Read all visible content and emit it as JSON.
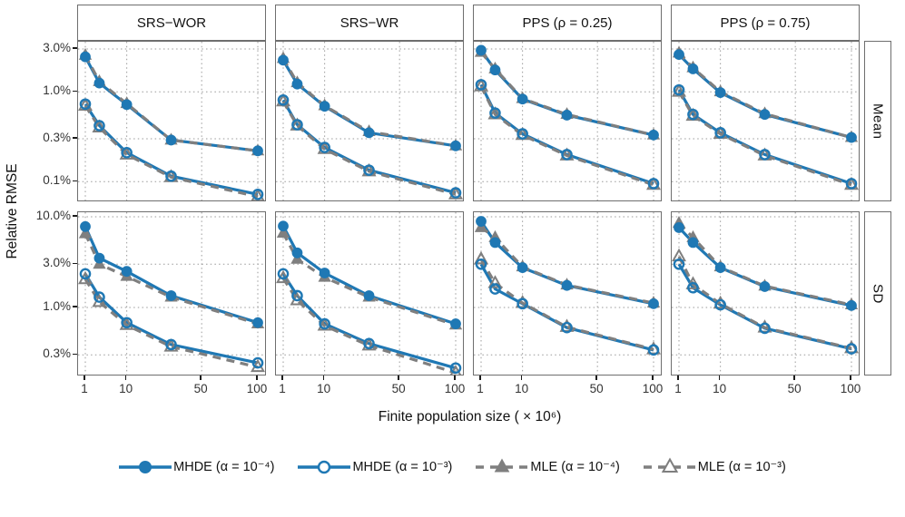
{
  "figure": {
    "xlabel": "Finite population size ( × 10⁶)",
    "ylabel": "Relative RMSE",
    "col_labels": [
      "SRS−WOR",
      "SRS−WR",
      "PPS (ρ = 0.25)",
      "PPS (ρ = 0.75)"
    ],
    "row_labels": [
      "Mean",
      "SD"
    ],
    "x_tick_labels": [
      "1",
      "10",
      "50",
      "100"
    ],
    "row_ticks": [
      {
        "labels": [
          "3.0%",
          "1.0%",
          "0.3%",
          "0.1%"
        ],
        "values": [
          3,
          1,
          0.3,
          0.1
        ]
      },
      {
        "labels": [
          "10.0%",
          "3.0%",
          "1.0%",
          "0.3%"
        ],
        "values": [
          10,
          3,
          1,
          0.3
        ]
      }
    ]
  },
  "colors": {
    "mhde_blue": "#1f78b4",
    "mle_gray": "#7f7f7f",
    "grid": "#9a9a9a",
    "panel_border": "#6e6e6e",
    "text": "#1a1a1a"
  },
  "chart_data": {
    "type": "line",
    "x_scale": "sqrt",
    "y_scale": "log",
    "title": "",
    "xlabel": "Finite population size ( × 10⁶)",
    "ylabel": "Relative RMSE",
    "x": [
      1,
      3,
      10,
      30,
      100
    ],
    "x_ticks": [
      1,
      10,
      50,
      100
    ],
    "grid": "dotted",
    "legend_position": "bottom",
    "series_defs": [
      {
        "id": "mhde4",
        "name": "MHDE (α = 10⁻⁴)",
        "color": "#1f78b4",
        "line": "solid",
        "marker": "circle",
        "fill": "filled"
      },
      {
        "id": "mhde3",
        "name": "MHDE (α = 10⁻³)",
        "color": "#1f78b4",
        "line": "solid",
        "marker": "circle",
        "fill": "open"
      },
      {
        "id": "mle4",
        "name": "MLE (α = 10⁻⁴)",
        "color": "#7f7f7f",
        "line": "dashed",
        "marker": "triangle",
        "fill": "filled"
      },
      {
        "id": "mle3",
        "name": "MLE (α = 10⁻³)",
        "color": "#7f7f7f",
        "line": "dashed",
        "marker": "triangle",
        "fill": "open"
      }
    ],
    "panels": [
      {
        "row": "Mean",
        "col": "SRS−WOR",
        "ylim": [
          0.06,
          3.6
        ],
        "values": {
          "mhde4": [
            2.45,
            1.25,
            0.72,
            0.29,
            0.22
          ],
          "mhde3": [
            0.73,
            0.42,
            0.21,
            0.115,
            0.072
          ],
          "mle4": [
            2.55,
            1.3,
            0.74,
            0.29,
            0.22
          ],
          "mle3": [
            0.7,
            0.4,
            0.2,
            0.112,
            0.068
          ]
        }
      },
      {
        "row": "Mean",
        "col": "SRS−WR",
        "ylim": [
          0.06,
          3.6
        ],
        "values": {
          "mhde4": [
            2.25,
            1.22,
            0.69,
            0.35,
            0.25
          ],
          "mhde3": [
            0.81,
            0.43,
            0.24,
            0.134,
            0.075
          ],
          "mle4": [
            2.35,
            1.26,
            0.7,
            0.36,
            0.25
          ],
          "mle3": [
            0.78,
            0.42,
            0.23,
            0.13,
            0.072
          ]
        }
      },
      {
        "row": "Mean",
        "col": "PPS (ρ = 0.25)",
        "ylim": [
          0.06,
          3.6
        ],
        "values": {
          "mhde4": [
            2.9,
            1.75,
            0.83,
            0.55,
            0.33
          ],
          "mhde3": [
            1.2,
            0.58,
            0.34,
            0.2,
            0.095
          ],
          "mle4": [
            2.75,
            1.8,
            0.84,
            0.56,
            0.33
          ],
          "mle3": [
            1.15,
            0.56,
            0.33,
            0.195,
            0.092
          ]
        }
      },
      {
        "row": "Mean",
        "col": "PPS (ρ = 0.75)",
        "ylim": [
          0.06,
          3.6
        ],
        "values": {
          "mhde4": [
            2.6,
            1.8,
            0.98,
            0.56,
            0.31
          ],
          "mhde3": [
            1.05,
            0.56,
            0.35,
            0.2,
            0.095
          ],
          "mle4": [
            2.7,
            1.85,
            1.0,
            0.57,
            0.31
          ],
          "mle3": [
            1.0,
            0.54,
            0.34,
            0.195,
            0.092
          ]
        }
      },
      {
        "row": "SD",
        "col": "SRS−WOR",
        "ylim": [
          0.17,
          11.2
        ],
        "values": {
          "mhde4": [
            7.8,
            3.5,
            2.5,
            1.35,
            0.68
          ],
          "mhde3": [
            2.35,
            1.3,
            0.68,
            0.39,
            0.245
          ],
          "mle4": [
            6.5,
            3.0,
            2.2,
            1.3,
            0.66
          ],
          "mle3": [
            2.05,
            1.15,
            0.64,
            0.37,
            0.22
          ]
        }
      },
      {
        "row": "SD",
        "col": "SRS−WR",
        "ylim": [
          0.17,
          11.2
        ],
        "values": {
          "mhde4": [
            7.9,
            4.0,
            2.4,
            1.35,
            0.66
          ],
          "mhde3": [
            2.35,
            1.35,
            0.66,
            0.4,
            0.215
          ],
          "mle4": [
            6.6,
            3.4,
            2.15,
            1.3,
            0.64
          ],
          "mle3": [
            2.1,
            1.2,
            0.63,
            0.38,
            0.19
          ]
        }
      },
      {
        "row": "SD",
        "col": "PPS (ρ = 0.25)",
        "ylim": [
          0.17,
          11.2
        ],
        "values": {
          "mhde4": [
            8.9,
            5.2,
            2.75,
            1.75,
            1.1
          ],
          "mhde3": [
            3.0,
            1.6,
            1.1,
            0.6,
            0.34
          ],
          "mle4": [
            7.6,
            5.9,
            2.8,
            1.77,
            1.12
          ],
          "mle3": [
            3.4,
            1.85,
            1.12,
            0.61,
            0.345
          ]
        }
      },
      {
        "row": "SD",
        "col": "PPS (ρ = 0.75)",
        "ylim": [
          0.17,
          11.2
        ],
        "values": {
          "mhde4": [
            7.6,
            5.2,
            2.75,
            1.7,
            1.05
          ],
          "mhde3": [
            3.0,
            1.65,
            1.07,
            0.59,
            0.35
          ],
          "mle4": [
            8.5,
            5.9,
            2.8,
            1.72,
            1.07
          ],
          "mle3": [
            3.65,
            1.8,
            1.1,
            0.6,
            0.355
          ]
        }
      }
    ]
  }
}
